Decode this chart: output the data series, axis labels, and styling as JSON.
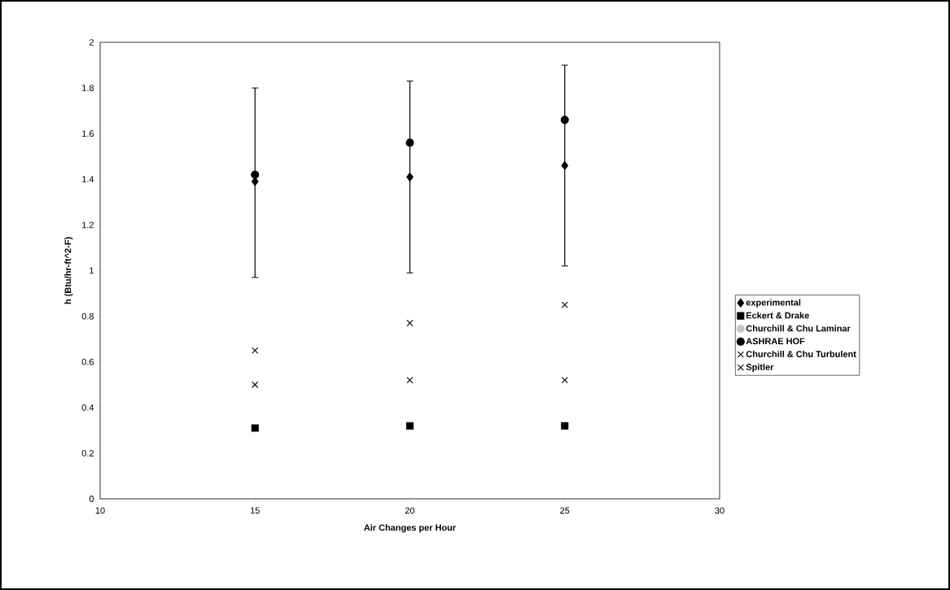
{
  "chart_data": {
    "type": "scatter",
    "xlabel": "Air Changes per Hour",
    "ylabel": "h (Btu/hr-ft^2-F)",
    "x": [
      15,
      20,
      25
    ],
    "series": [
      {
        "name": "experimental",
        "color": "#000000",
        "marker": "diamond",
        "values": [
          1.39,
          1.41,
          1.46
        ],
        "errors": [
          [
            0.97,
            1.8
          ],
          [
            0.99,
            1.83
          ],
          [
            1.02,
            1.9
          ]
        ]
      },
      {
        "name": "Eckert & Drake",
        "color": "#000000",
        "marker": "square",
        "values": [
          0.31,
          0.32,
          0.32
        ]
      },
      {
        "name": "Churchill & Chu Laminar",
        "color": "#c8c8c8",
        "marker": "circle",
        "values": [
          null,
          null,
          null
        ]
      },
      {
        "name": "ASHRAE HOF",
        "color": "#000000",
        "marker": "circle",
        "values": [
          1.42,
          1.56,
          1.66
        ]
      },
      {
        "name": "Churchill & Chu Turbulent",
        "color": "#000000",
        "marker": "cross",
        "values": [
          0.5,
          0.52,
          0.52
        ]
      },
      {
        "name": "Spitler",
        "color": "#000000",
        "marker": "cross",
        "values": [
          0.65,
          0.77,
          0.85
        ]
      }
    ],
    "xlim": [
      10,
      30
    ],
    "xticks": [
      10,
      15,
      20,
      25,
      30
    ],
    "ylim": [
      0,
      2
    ],
    "yticks": [
      0,
      0.2,
      0.4,
      0.6,
      0.8,
      1,
      1.2,
      1.4,
      1.6,
      1.8,
      2
    ],
    "grid": false,
    "legend": "right"
  }
}
